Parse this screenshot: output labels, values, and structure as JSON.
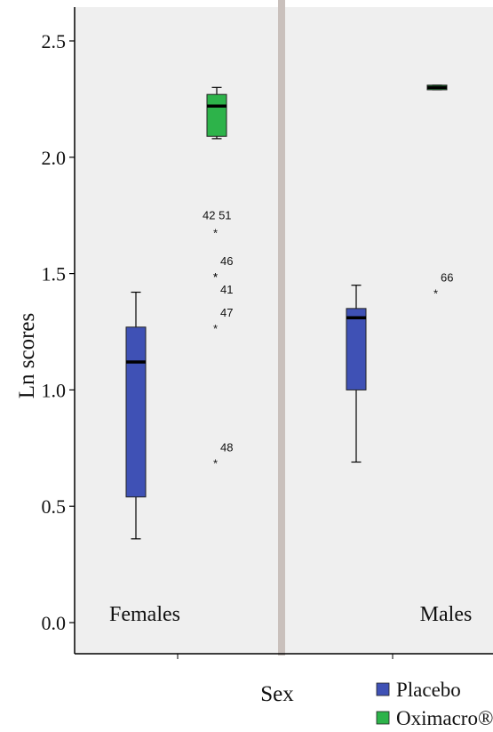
{
  "chart_data": {
    "type": "boxplot",
    "ylabel": "Ln scores",
    "xlabel": "Sex",
    "ylim": [
      0.0,
      2.6
    ],
    "yticks": [
      "0.0",
      "0.5",
      "1.0",
      "1.5",
      "2.0",
      "2.5"
    ],
    "panels": [
      "Females",
      "Males"
    ],
    "legend": {
      "position": "bottom-right",
      "entries": [
        {
          "name": "Placebo",
          "color": "#3f51b5"
        },
        {
          "name": "Oximacro®",
          "color": "#2db34a"
        }
      ]
    },
    "series": [
      {
        "name": "Placebo",
        "color": "#3f51b5",
        "boxes": [
          {
            "panel": "Females",
            "min": 0.36,
            "q1": 0.54,
            "median": 1.12,
            "q3": 1.27,
            "max": 1.42
          },
          {
            "panel": "Males",
            "min": 0.69,
            "q1": 1.0,
            "median": 1.31,
            "q3": 1.35,
            "max": 1.45
          }
        ]
      },
      {
        "name": "Oximacro®",
        "color": "#2db34a",
        "boxes": [
          {
            "panel": "Females",
            "min": 2.08,
            "q1": 2.09,
            "median": 2.22,
            "q3": 2.27,
            "max": 2.3
          },
          {
            "panel": "Males",
            "min": 2.29,
            "q1": 2.29,
            "median": 2.3,
            "q3": 2.31,
            "max": 2.31
          }
        ]
      }
    ],
    "outliers": [
      {
        "panel": "Females",
        "series": "Oximacro®",
        "labels": [
          "42",
          "51"
        ],
        "y": 1.68
      },
      {
        "panel": "Females",
        "series": "Oximacro®",
        "labels": [
          "46"
        ],
        "y": 1.49
      },
      {
        "panel": "Females",
        "series": "Oximacro®",
        "labels": [
          "41"
        ],
        "y": 1.49
      },
      {
        "panel": "Females",
        "series": "Oximacro®",
        "labels": [
          "47"
        ],
        "y": 1.27
      },
      {
        "panel": "Females",
        "series": "Oximacro®",
        "labels": [
          "48"
        ],
        "y": 0.69
      },
      {
        "panel": "Males",
        "series": "Oximacro®",
        "labels": [
          "66"
        ],
        "y": 1.42
      }
    ]
  }
}
